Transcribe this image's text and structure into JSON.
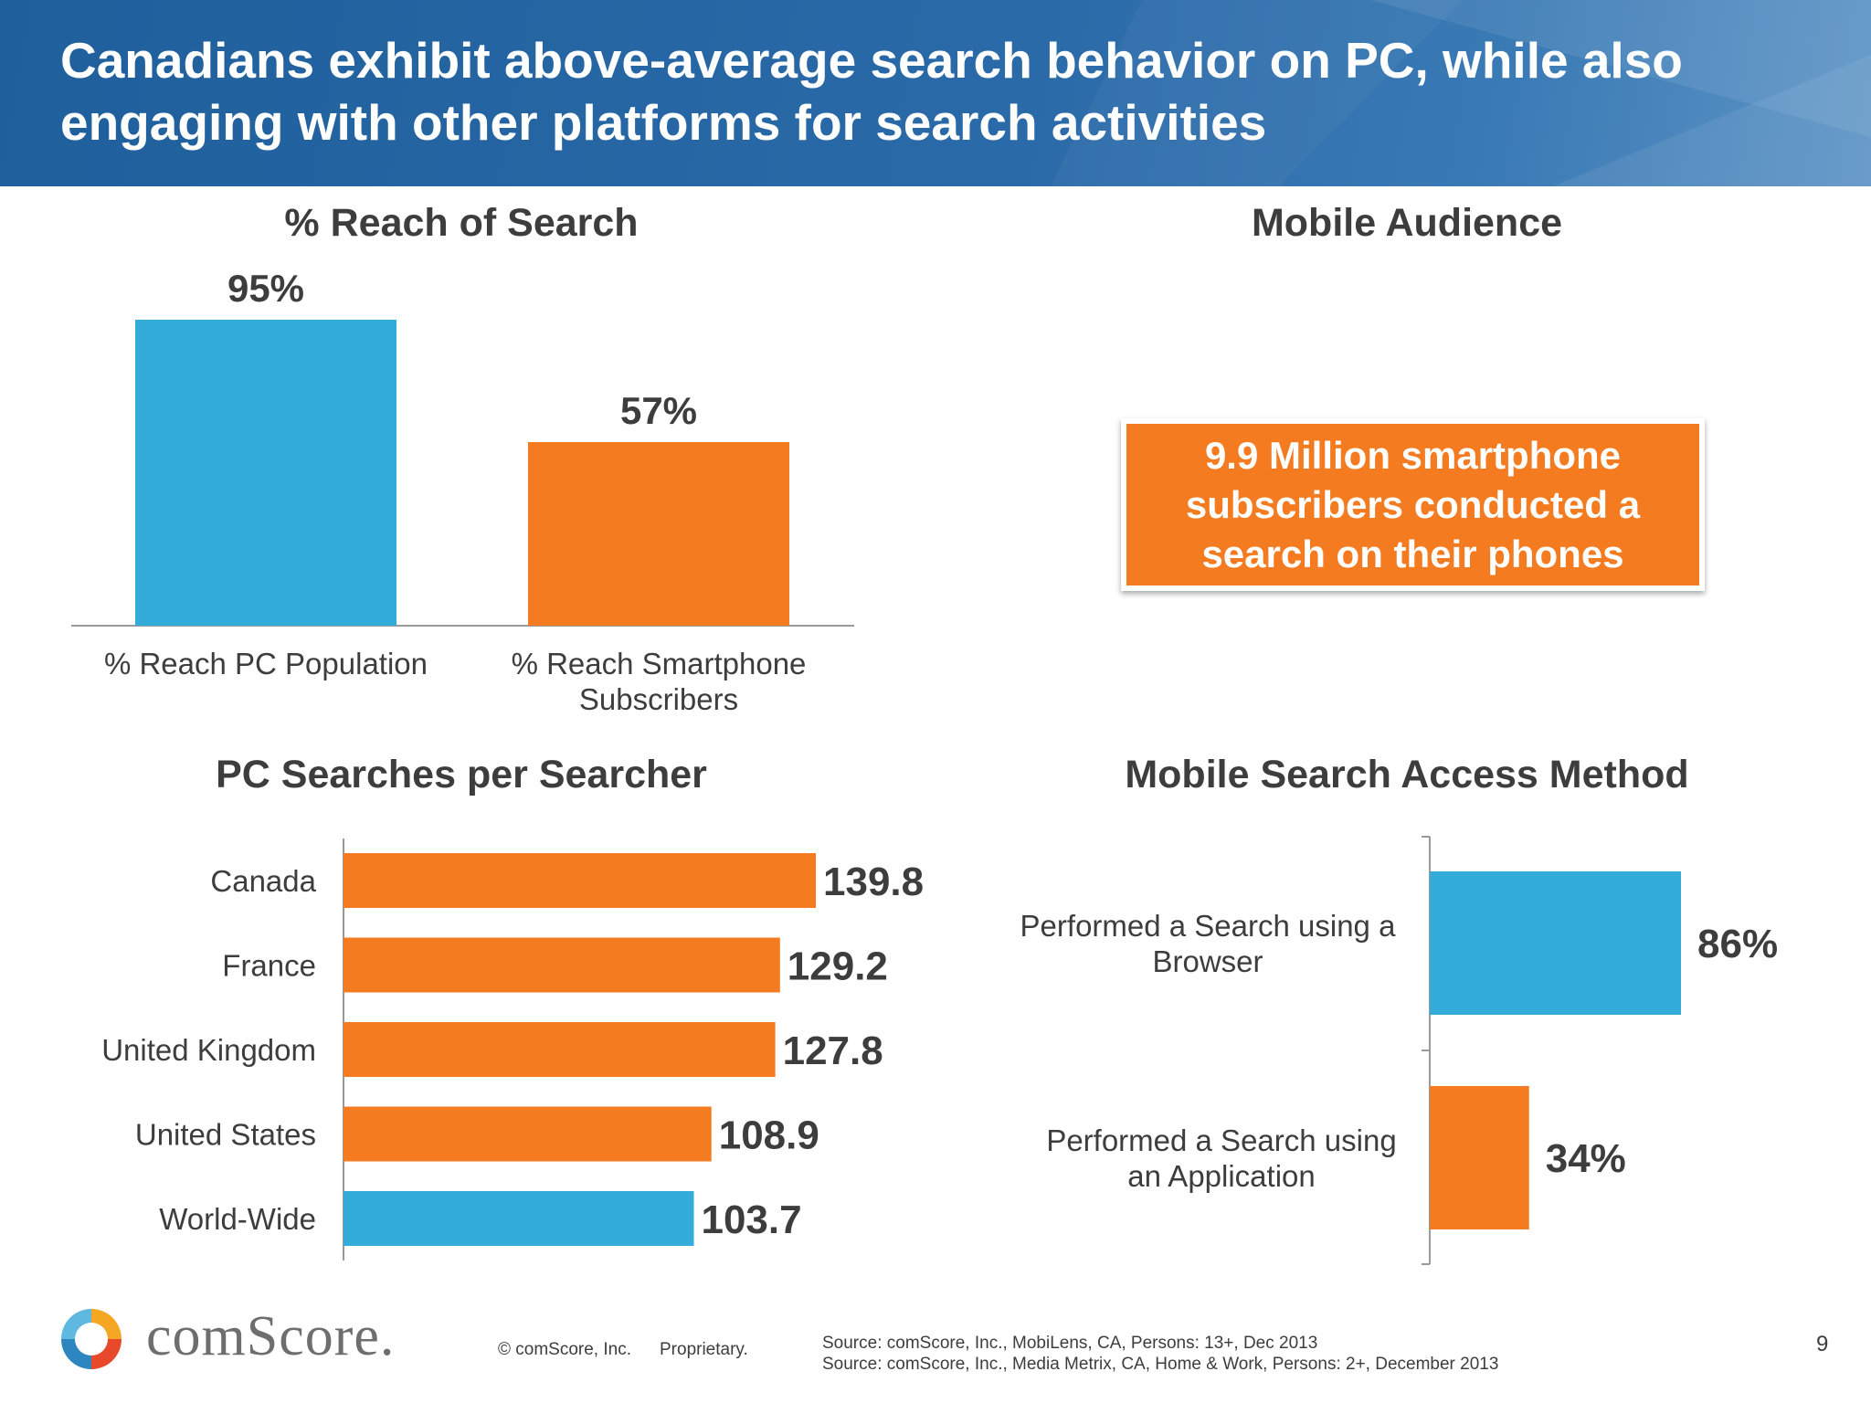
{
  "header": {
    "title": "Canadians exhibit above-average search behavior on PC, while also engaging with other platforms for search activities"
  },
  "colors": {
    "blue": "#33acd9",
    "orange": "#f47b20",
    "text": "#3d3d3d"
  },
  "panels": {
    "reach_title": "% Reach of Search",
    "mobile_audience_title": "Mobile Audience",
    "pc_searches_title": "PC Searches per Searcher",
    "access_method_title": "Mobile Search Access Method"
  },
  "callout": {
    "text": "9.9 Million smartphone subscribers conducted a search on their phones"
  },
  "chart_data": [
    {
      "type": "bar",
      "title": "% Reach of Search",
      "categories": [
        "% Reach PC Population",
        "% Reach Smartphone Subscribers"
      ],
      "values": [
        95,
        57
      ],
      "labels": [
        "95%",
        "57%"
      ],
      "colors": [
        "#33acd9",
        "#f47b20"
      ],
      "ylim": [
        0,
        100
      ]
    },
    {
      "type": "bar",
      "orientation": "horizontal",
      "title": "PC Searches per Searcher",
      "categories": [
        "Canada",
        "France",
        "United Kingdom",
        "United States",
        "World-Wide"
      ],
      "values": [
        139.8,
        129.2,
        127.8,
        108.9,
        103.7
      ],
      "labels": [
        "139.8",
        "129.2",
        "127.8",
        "108.9",
        "103.7"
      ],
      "colors": [
        "#f47b20",
        "#f47b20",
        "#f47b20",
        "#f47b20",
        "#33acd9"
      ],
      "xlim": [
        0,
        140
      ]
    },
    {
      "type": "bar",
      "orientation": "horizontal",
      "title": "Mobile Search Access Method",
      "categories": [
        "Performed a Search using a Browser",
        "Performed a Search using an Application"
      ],
      "values": [
        86,
        34
      ],
      "labels": [
        "86%",
        "34%"
      ],
      "colors": [
        "#33acd9",
        "#f47b20"
      ],
      "xlim": [
        0,
        100
      ]
    }
  ],
  "footer": {
    "logo_text": "comScore.",
    "copyright": "© comScore, Inc.",
    "proprietary": "Proprietary.",
    "source1": "Source: comScore, Inc., MobiLens, CA, Persons: 13+, Dec 2013",
    "source2": "Source: comScore, Inc., Media Metrix, CA, Home & Work, Persons: 2+, December 2013",
    "page": "9"
  }
}
